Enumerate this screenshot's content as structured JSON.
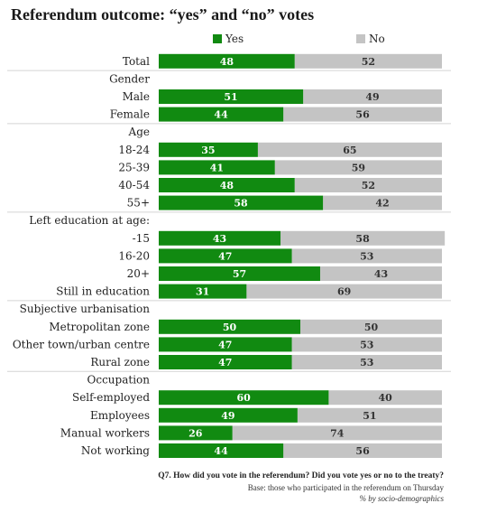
{
  "title": "Referendum outcome: “yes” and “no” votes",
  "legend": [
    {
      "label": "Yes",
      "color": "#118a11"
    },
    {
      "label": "No",
      "color": "#c4c4c4"
    }
  ],
  "chart_data": {
    "type": "bar",
    "orientation": "horizontal",
    "stacked": true,
    "xlim": [
      0,
      100
    ],
    "grid": false,
    "legend_position": "top",
    "colors": {
      "Yes": "#118a11",
      "No": "#c4c4c4"
    },
    "rows": [
      {
        "kind": "bar",
        "label": "Total",
        "yes": 48,
        "no": 52
      },
      {
        "kind": "header",
        "label": "Gender"
      },
      {
        "kind": "bar",
        "label": "Male",
        "yes": 51,
        "no": 49
      },
      {
        "kind": "bar",
        "label": "Female",
        "yes": 44,
        "no": 56
      },
      {
        "kind": "header",
        "label": "Age"
      },
      {
        "kind": "bar",
        "label": "18-24",
        "yes": 35,
        "no": 65
      },
      {
        "kind": "bar",
        "label": "25-39",
        "yes": 41,
        "no": 59
      },
      {
        "kind": "bar",
        "label": "40-54",
        "yes": 48,
        "no": 52
      },
      {
        "kind": "bar",
        "label": "55+",
        "yes": 58,
        "no": 42
      },
      {
        "kind": "header",
        "label": "Left education at age:"
      },
      {
        "kind": "bar",
        "label": "-15",
        "yes": 43,
        "no": 58
      },
      {
        "kind": "bar",
        "label": "16-20",
        "yes": 47,
        "no": 53
      },
      {
        "kind": "bar",
        "label": "20+",
        "yes": 57,
        "no": 43
      },
      {
        "kind": "bar",
        "label": "Still in education",
        "yes": 31,
        "no": 69
      },
      {
        "kind": "header",
        "label": "Subjective urbanisation"
      },
      {
        "kind": "bar",
        "label": "Metropolitan zone",
        "yes": 50,
        "no": 50
      },
      {
        "kind": "bar",
        "label": "Other town/urban centre",
        "yes": 47,
        "no": 53
      },
      {
        "kind": "bar",
        "label": "Rural zone",
        "yes": 47,
        "no": 53
      },
      {
        "kind": "header",
        "label": "Occupation"
      },
      {
        "kind": "bar",
        "label": "Self-employed",
        "yes": 60,
        "no": 40
      },
      {
        "kind": "bar",
        "label": "Employees",
        "yes": 49,
        "no": 51
      },
      {
        "kind": "bar",
        "label": "Manual workers",
        "yes": 26,
        "no": 74
      },
      {
        "kind": "bar",
        "label": "Not working",
        "yes": 44,
        "no": 56
      }
    ]
  },
  "footnote": {
    "question": "Q7. How did you vote in the referendum? Did you vote yes or no to the treaty?",
    "base": "Base: those who participated in the referendum on Thursday",
    "note": "% by socio-demographics"
  }
}
